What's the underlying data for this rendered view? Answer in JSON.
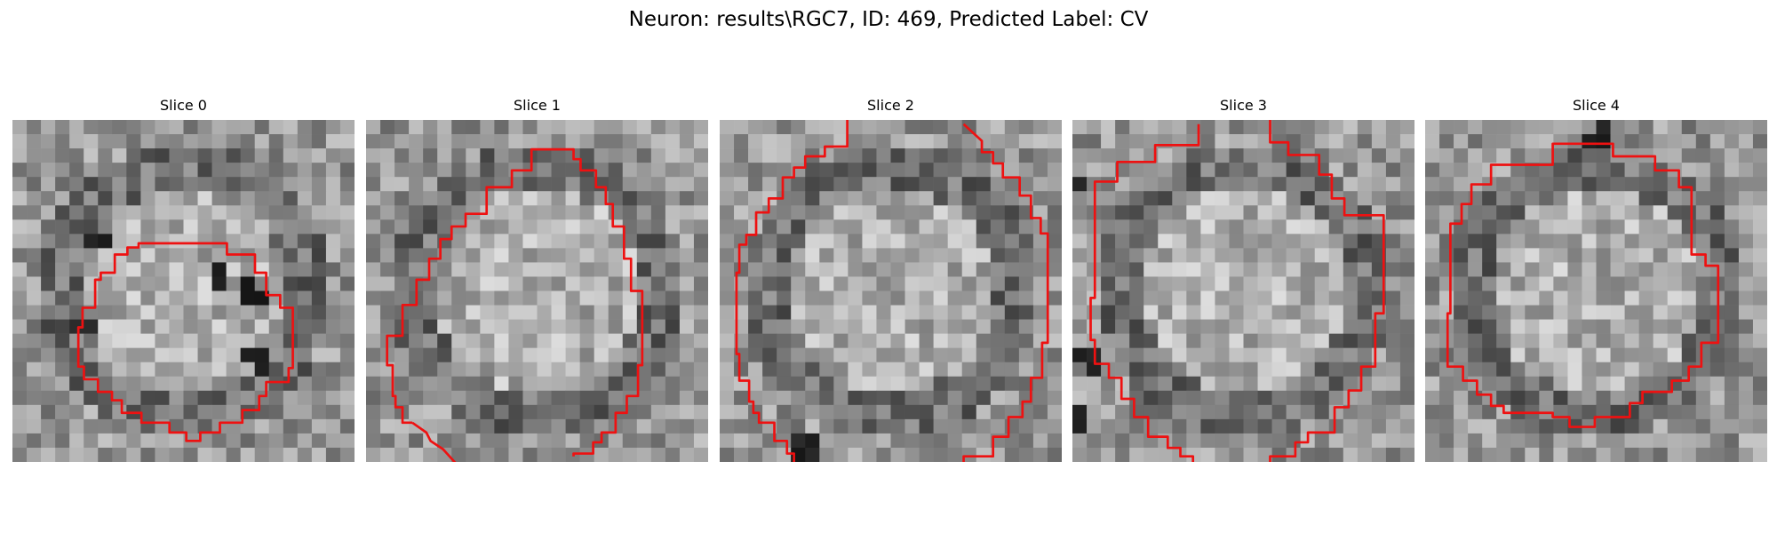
{
  "title": "Neuron: results\\RGC7, ID: 469, Predicted Label: CV",
  "contour_color": "#ee1111",
  "slices": [
    {
      "label": "Slice 0",
      "contour": [
        [
          12.5,
          8.8
        ],
        [
          15.3,
          8.8
        ],
        [
          15.3,
          9.6
        ],
        [
          17.3,
          9.6
        ],
        [
          17.3,
          10.9
        ],
        [
          18.1,
          10.9
        ],
        [
          18.1,
          12.5
        ],
        [
          19.1,
          12.5
        ],
        [
          19.1,
          13.4
        ],
        [
          20,
          13.4
        ],
        [
          20,
          17.7
        ],
        [
          19.7,
          17.7
        ],
        [
          19.7,
          18.7
        ],
        [
          18.1,
          18.7
        ],
        [
          18.1,
          19.7
        ],
        [
          17.6,
          19.7
        ],
        [
          17.6,
          20.7
        ],
        [
          16.4,
          20.7
        ],
        [
          16.4,
          21.6
        ],
        [
          14.8,
          21.6
        ],
        [
          14.8,
          22.3
        ],
        [
          13.4,
          22.3
        ],
        [
          13.4,
          22.9
        ],
        [
          12.4,
          22.9
        ],
        [
          12.4,
          22.3
        ],
        [
          11.2,
          22.3
        ],
        [
          11.2,
          21.6
        ],
        [
          9.2,
          21.6
        ],
        [
          9.2,
          20.9
        ],
        [
          7.8,
          20.9
        ],
        [
          7.8,
          20
        ],
        [
          7.1,
          20
        ],
        [
          7.1,
          19.4
        ],
        [
          6.1,
          19.4
        ],
        [
          6.1,
          18.5
        ],
        [
          5.1,
          18.5
        ],
        [
          5.1,
          17.6
        ],
        [
          4.7,
          17.6
        ],
        [
          4.7,
          14.8
        ],
        [
          5,
          14.8
        ],
        [
          5,
          13.4
        ],
        [
          5.9,
          13.4
        ],
        [
          5.9,
          12.9
        ],
        [
          5.9,
          11.4
        ],
        [
          6.3,
          11.4
        ],
        [
          6.3,
          10.9
        ],
        [
          7.3,
          10.9
        ],
        [
          7.3,
          9.6
        ],
        [
          8.2,
          9.6
        ],
        [
          8.2,
          9.1
        ],
        [
          9,
          9.1
        ],
        [
          9,
          8.8
        ],
        [
          12.5,
          8.8
        ]
      ],
      "closed": true,
      "dark_spots": [
        [
          5.9,
          8.5
        ],
        [
          14.8,
          11.2
        ],
        [
          17.1,
          12.5
        ],
        [
          5,
          14.9
        ],
        [
          17.6,
          17.1
        ]
      ]
    },
    {
      "label": "Slice 1",
      "contour": [
        [
          3.3,
          21.6
        ],
        [
          2.6,
          21.6
        ],
        [
          2.6,
          20.5
        ],
        [
          2.1,
          20.5
        ],
        [
          2.1,
          19.7
        ],
        [
          1.9,
          19.7
        ],
        [
          1.9,
          17.5
        ],
        [
          1.5,
          17.5
        ],
        [
          1.5,
          15.4
        ],
        [
          2.6,
          15.4
        ],
        [
          2.6,
          13.2
        ],
        [
          3.6,
          13.2
        ],
        [
          3.6,
          11.4
        ],
        [
          4.5,
          11.4
        ],
        [
          4.5,
          9.9
        ],
        [
          5.3,
          9.9
        ],
        [
          5.3,
          8.5
        ],
        [
          6.1,
          8.5
        ],
        [
          6.1,
          7.6
        ],
        [
          7.1,
          7.6
        ],
        [
          7.1,
          6.7
        ],
        [
          8.6,
          6.7
        ],
        [
          8.6,
          4.8
        ],
        [
          10.4,
          4.8
        ],
        [
          10.4,
          3.6
        ],
        [
          11.8,
          3.6
        ],
        [
          11.8,
          2.1
        ],
        [
          14.8,
          2.1
        ],
        [
          14.8,
          2.8
        ],
        [
          15.3,
          2.8
        ],
        [
          15.3,
          3.6
        ],
        [
          16.4,
          3.6
        ],
        [
          16.4,
          4.8
        ],
        [
          17.1,
          4.8
        ],
        [
          17.1,
          6
        ],
        [
          17.6,
          6
        ],
        [
          17.6,
          7.6
        ],
        [
          18.4,
          7.6
        ],
        [
          18.4,
          9.9
        ],
        [
          18.9,
          9.9
        ],
        [
          18.9,
          12.2
        ],
        [
          19.7,
          12.2
        ],
        [
          19.7,
          17.5
        ],
        [
          19.4,
          17.5
        ],
        [
          19.4,
          19.7
        ],
        [
          18.6,
          19.7
        ],
        [
          18.6,
          20.9
        ],
        [
          17.8,
          20.9
        ],
        [
          17.8,
          22.3
        ],
        [
          16.8,
          22.3
        ],
        [
          16.8,
          23
        ],
        [
          16.2,
          23
        ],
        [
          16.2,
          23.8
        ],
        [
          14.8,
          23.8
        ],
        [
          14.8,
          24
        ]
      ],
      "contour_tail": [
        [
          3.3,
          21.6
        ],
        [
          4.3,
          22.3
        ],
        [
          4.6,
          22.9
        ],
        [
          5.5,
          23.5
        ],
        [
          6.4,
          24.5
        ]
      ],
      "closed": false,
      "dark_spots": []
    },
    {
      "label": "Slice 2",
      "contour": [
        [
          5.3,
          24.4
        ],
        [
          5.3,
          23.8
        ],
        [
          4.8,
          23.8
        ],
        [
          4.8,
          22.9
        ],
        [
          3.9,
          22.9
        ],
        [
          3.9,
          21.6
        ],
        [
          2.8,
          21.6
        ],
        [
          2.8,
          20.9
        ],
        [
          2.4,
          20.9
        ],
        [
          2.4,
          20.1
        ],
        [
          2.1,
          20.1
        ],
        [
          2.1,
          18.6
        ],
        [
          1.4,
          18.6
        ],
        [
          1.4,
          16.7
        ],
        [
          1.2,
          16.7
        ],
        [
          1.2,
          10.9
        ],
        [
          1.4,
          10.9
        ],
        [
          1.4,
          8.9
        ],
        [
          1.9,
          8.9
        ],
        [
          1.9,
          8.2
        ],
        [
          2.6,
          8.2
        ],
        [
          2.6,
          6.6
        ],
        [
          3.5,
          6.6
        ],
        [
          3.5,
          5.6
        ],
        [
          4.5,
          5.6
        ],
        [
          4.5,
          4.1
        ],
        [
          5.3,
          4.1
        ],
        [
          5.3,
          3.4
        ],
        [
          6.1,
          3.4
        ],
        [
          6.1,
          2.6
        ],
        [
          7.5,
          2.6
        ],
        [
          7.5,
          1.9
        ],
        [
          9.1,
          1.9
        ],
        [
          9.1,
          0
        ]
      ],
      "contour_right": [
        [
          17.4,
          0.3
        ],
        [
          18.7,
          1.5
        ],
        [
          18.7,
          2.3
        ],
        [
          19.5,
          2.3
        ],
        [
          19.5,
          3.1
        ],
        [
          20.2,
          3.1
        ],
        [
          20.2,
          4.1
        ],
        [
          21.4,
          4.1
        ],
        [
          21.4,
          5.4
        ],
        [
          22.2,
          5.4
        ],
        [
          22.2,
          7
        ],
        [
          22.9,
          7
        ],
        [
          22.9,
          8.1
        ],
        [
          23.4,
          8.1
        ],
        [
          23.4,
          15.9
        ],
        [
          23,
          15.9
        ],
        [
          23,
          18.4
        ],
        [
          22.2,
          18.4
        ],
        [
          22.2,
          20.1
        ],
        [
          21.6,
          20.1
        ],
        [
          21.6,
          21.2
        ],
        [
          20.6,
          21.2
        ],
        [
          20.6,
          22.6
        ],
        [
          19.5,
          22.6
        ],
        [
          19.5,
          24
        ],
        [
          17.4,
          24
        ],
        [
          17.4,
          24.4
        ]
      ],
      "closed": false,
      "dark_spots": [
        [
          6.1,
          23.4
        ]
      ]
    },
    {
      "label": "Slice 3",
      "contour": [
        [
          8.6,
          24.4
        ],
        [
          8.6,
          24
        ],
        [
          7.7,
          24
        ],
        [
          7.7,
          23.4
        ],
        [
          6.8,
          23.4
        ],
        [
          6.8,
          22.6
        ],
        [
          5.4,
          22.6
        ],
        [
          5.4,
          21.2
        ],
        [
          4.4,
          21.2
        ],
        [
          4.4,
          19.9
        ],
        [
          3.5,
          19.9
        ],
        [
          3.5,
          18.4
        ],
        [
          2.6,
          18.4
        ],
        [
          2.6,
          17.4
        ],
        [
          1.6,
          17.4
        ],
        [
          1.6,
          15.7
        ],
        [
          1.3,
          15.7
        ],
        [
          1.3,
          12.7
        ],
        [
          1.6,
          12.7
        ],
        [
          1.6,
          4.4
        ],
        [
          3.2,
          4.4
        ],
        [
          3.2,
          3
        ],
        [
          5.9,
          3
        ],
        [
          5.9,
          1.8
        ],
        [
          9,
          1.8
        ],
        [
          9,
          0.3
        ]
      ],
      "contour_right": [
        [
          14.1,
          0
        ],
        [
          14.1,
          1.6
        ],
        [
          15.4,
          1.6
        ],
        [
          15.4,
          2.5
        ],
        [
          17.6,
          2.5
        ],
        [
          17.6,
          3.9
        ],
        [
          18.5,
          3.9
        ],
        [
          18.5,
          5.6
        ],
        [
          19.4,
          5.6
        ],
        [
          19.4,
          6.8
        ],
        [
          22.2,
          6.8
        ],
        [
          22.2,
          13.8
        ],
        [
          21.6,
          13.8
        ],
        [
          21.6,
          17.6
        ],
        [
          20.6,
          17.6
        ],
        [
          20.6,
          19.3
        ],
        [
          19.7,
          19.3
        ],
        [
          19.7,
          20.5
        ],
        [
          18.7,
          20.5
        ],
        [
          18.7,
          22.3
        ],
        [
          16.8,
          22.3
        ],
        [
          16.8,
          23
        ],
        [
          15.9,
          23
        ],
        [
          15.9,
          24
        ],
        [
          14.1,
          24
        ],
        [
          14.1,
          24.4
        ]
      ],
      "closed": false,
      "dark_spots": [
        [
          0.3,
          4.5
        ],
        [
          1.3,
          17.2
        ],
        [
          0.6,
          21.6
        ]
      ]
    },
    {
      "label": "Slice 4",
      "contour": [
        [
          10.4,
          1.7
        ],
        [
          13.4,
          1.7
        ],
        [
          13.4,
          2.6
        ],
        [
          16.4,
          2.6
        ],
        [
          16.4,
          3.6
        ],
        [
          18.1,
          3.6
        ],
        [
          18.1,
          4.8
        ],
        [
          19,
          4.8
        ],
        [
          19,
          9.6
        ],
        [
          20,
          9.6
        ],
        [
          20,
          10.4
        ],
        [
          20.9,
          10.4
        ],
        [
          20.9,
          15.9
        ],
        [
          19.7,
          15.9
        ],
        [
          19.7,
          17.6
        ],
        [
          18.8,
          17.6
        ],
        [
          18.8,
          18.6
        ],
        [
          17.6,
          18.6
        ],
        [
          17.6,
          19.4
        ],
        [
          15.5,
          19.4
        ],
        [
          15.5,
          20.2
        ],
        [
          14.6,
          20.2
        ],
        [
          14.6,
          21.2
        ],
        [
          12.1,
          21.2
        ],
        [
          12.1,
          21.9
        ],
        [
          10.3,
          21.9
        ],
        [
          10.3,
          21.2
        ],
        [
          9.1,
          21.2
        ],
        [
          9.1,
          20.9
        ],
        [
          5.6,
          20.9
        ],
        [
          5.6,
          20.4
        ],
        [
          4.7,
          20.4
        ],
        [
          4.7,
          19.6
        ],
        [
          3.7,
          19.6
        ],
        [
          3.7,
          18.6
        ],
        [
          2.7,
          18.6
        ],
        [
          2.7,
          17.6
        ],
        [
          1.6,
          17.6
        ],
        [
          1.6,
          13.8
        ],
        [
          1.8,
          13.8
        ],
        [
          1.8,
          7.4
        ],
        [
          2.6,
          7.4
        ],
        [
          2.6,
          6
        ],
        [
          3.3,
          6
        ],
        [
          3.3,
          4.6
        ],
        [
          4.7,
          4.6
        ],
        [
          4.7,
          3.2
        ],
        [
          9.1,
          3.2
        ],
        [
          9.1,
          1.7
        ],
        [
          10.4,
          1.7
        ]
      ],
      "closed": true,
      "dark_spots": [
        [
          12.4,
          1.1
        ]
      ]
    }
  ]
}
